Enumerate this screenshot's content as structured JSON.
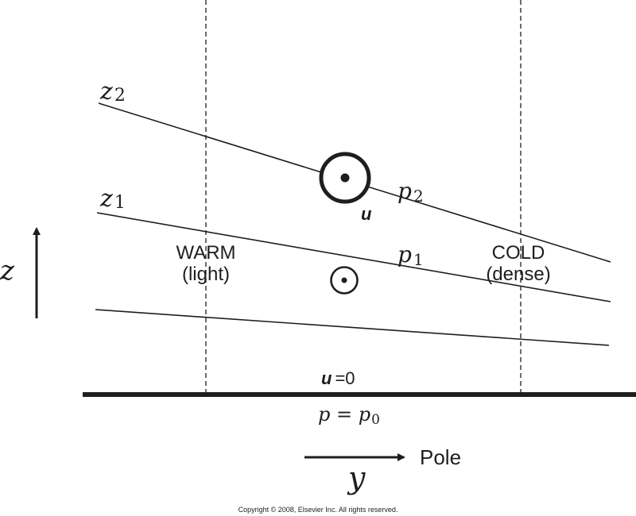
{
  "figure": {
    "labels": {
      "z2": {
        "base": "z",
        "sub": "2"
      },
      "z1": {
        "base": "z",
        "sub": "1"
      },
      "p2": {
        "base": "p",
        "sub": "2"
      },
      "p1": {
        "base": "p",
        "sub": "1"
      },
      "u_vector": "u",
      "z_axis": "z",
      "y_axis": "y",
      "pole": "Pole",
      "warm_line1": "WARM",
      "warm_line2": "(light)",
      "cold_line1": "COLD",
      "cold_line2": "(dense)",
      "surface_u": "u",
      "surface_u_value": "=0",
      "surface_p_left": "p = p",
      "surface_p_sub": "0",
      "copyright": "Copyright © 2008, Elsevier Inc. All rights reserved."
    },
    "colors": {
      "ink": "#1e1e1e",
      "background": "#ffffff"
    }
  }
}
